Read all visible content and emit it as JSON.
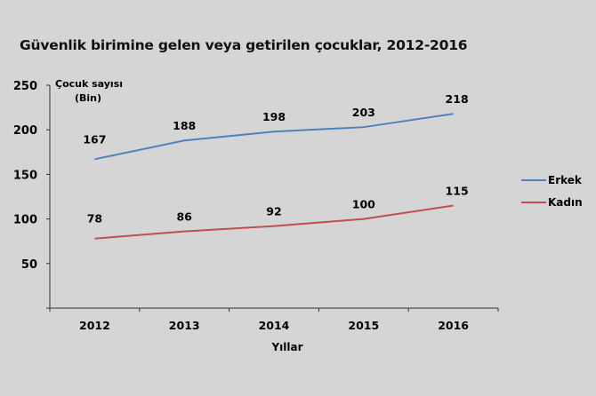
{
  "chart_data": {
    "type": "line",
    "title": "Güvenlik birimine gelen veya getirilen çocuklar, 2012-2016",
    "xlabel": "Yıllar",
    "ylabel_line1": "Çocuk sayısı",
    "ylabel_line2": "(Bin)",
    "categories": [
      "2012",
      "2013",
      "2014",
      "2015",
      "2016"
    ],
    "ylim": [
      0,
      250
    ],
    "yticks": [
      50,
      100,
      150,
      200,
      250
    ],
    "grid": false,
    "legend_position": "right",
    "data_labels": true,
    "series": [
      {
        "name": "Erkek",
        "values": [
          167,
          188,
          198,
          203,
          218
        ],
        "color": "#4f81bd"
      },
      {
        "name": "Kadın",
        "values": [
          78,
          86,
          92,
          100,
          115
        ],
        "color": "#c0504d"
      }
    ]
  }
}
